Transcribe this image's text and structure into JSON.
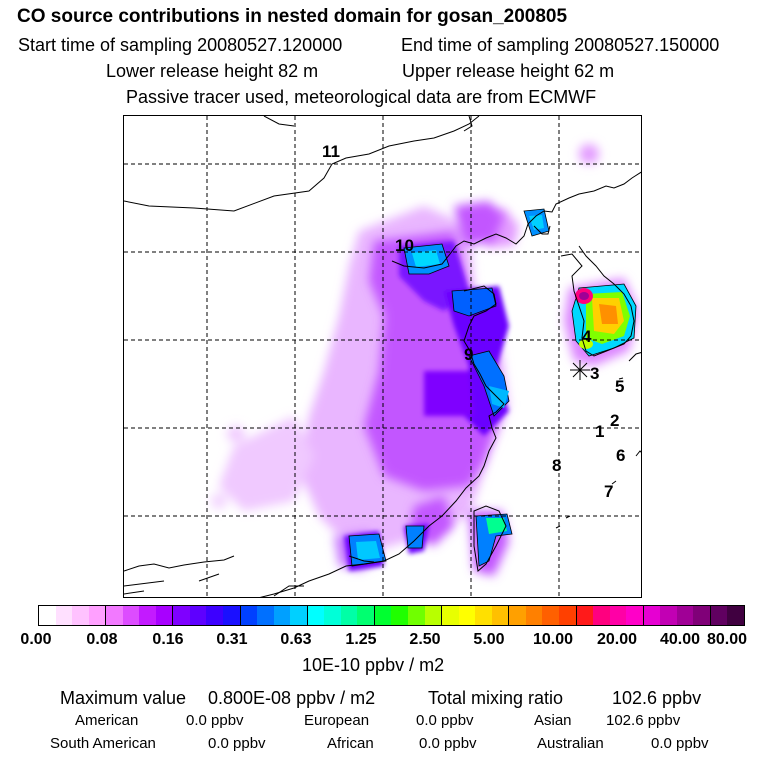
{
  "header": {
    "title": "CO  source contributions in nested domain for gosan_200805",
    "start_label": "Start time of sampling 20080527.120000",
    "end_label": "End time of sampling 20080527.150000",
    "lower_label": "Lower release height   82 m",
    "upper_label": "Upper release height   62 m",
    "note": "Passive tracer used, meteorological data are from ECMWF"
  },
  "map": {
    "site_labels": [
      "11",
      "10",
      "9",
      "4",
      "3",
      "5",
      "2",
      "1",
      "8",
      "6",
      "7"
    ]
  },
  "colorbar": {
    "tick_labels": [
      "0.00",
      "0.08",
      "0.16",
      "0.31",
      "0.63",
      "1.25",
      "2.50",
      "5.00",
      "10.00",
      "20.00",
      "40.00",
      "80.00"
    ],
    "colors": [
      "#ffffff",
      "#ffe0ff",
      "#ffc2ff",
      "#ffa0ff",
      "#f279ff",
      "#dd4cff",
      "#c31aff",
      "#a800ff",
      "#7f00ff",
      "#5e00ff",
      "#3d00ff",
      "#1a10ff",
      "#0040ff",
      "#0070ff",
      "#00a0ff",
      "#00d0ff",
      "#00ffff",
      "#00ffd8",
      "#00ffa6",
      "#00ff70",
      "#00ff30",
      "#20ff00",
      "#70ff00",
      "#b8ff00",
      "#e8ff00",
      "#ffff00",
      "#ffe000",
      "#ffc000",
      "#ffa000",
      "#ff8000",
      "#ff6000",
      "#ff4000",
      "#ff1a1a",
      "#ff007f",
      "#ff00a6",
      "#ff00c8",
      "#e600d2",
      "#c200b4",
      "#a00096",
      "#800078",
      "#600060",
      "#400040"
    ],
    "unit": "10E-10 ppbv / m2"
  },
  "stats": {
    "max_label": "Maximum value",
    "max_value": "0.800E-08 ppbv / m2",
    "total_label": "Total mixing ratio",
    "total_value": "102.6 ppbv",
    "regions": [
      {
        "name": "American",
        "value": "0.0 ppbv"
      },
      {
        "name": "European",
        "value": "0.0 ppbv"
      },
      {
        "name": "Asian",
        "value": "102.6 ppbv"
      },
      {
        "name": "South American",
        "value": "0.0 ppbv"
      },
      {
        "name": "African",
        "value": "0.0 ppbv"
      },
      {
        "name": "Australian",
        "value": "0.0 ppbv"
      }
    ]
  }
}
